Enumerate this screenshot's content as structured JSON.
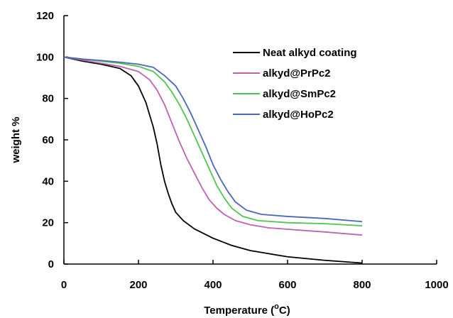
{
  "chart_data": {
    "type": "line",
    "xlabel": "Temperature (",
    "xlabel_unit": "C)",
    "xlabel_superscript": "o",
    "ylabel": "weight %",
    "xlim": [
      0,
      1000
    ],
    "ylim": [
      0,
      120
    ],
    "xticks": [
      "0",
      "200",
      "400",
      "600",
      "800",
      "1000"
    ],
    "yticks": [
      "0",
      "20",
      "40",
      "60",
      "80",
      "100",
      "120"
    ],
    "grid": false,
    "legend_position": "top-right",
    "series": [
      {
        "name": "Neat alkyd coating",
        "color": "#000000",
        "points": [
          [
            0,
            100
          ],
          [
            50,
            98
          ],
          [
            100,
            96.5
          ],
          [
            150,
            94.5
          ],
          [
            180,
            91
          ],
          [
            200,
            86
          ],
          [
            220,
            78
          ],
          [
            240,
            66
          ],
          [
            250,
            58
          ],
          [
            260,
            48
          ],
          [
            270,
            40
          ],
          [
            280,
            34
          ],
          [
            290,
            29
          ],
          [
            300,
            25
          ],
          [
            320,
            21
          ],
          [
            350,
            17
          ],
          [
            400,
            12.5
          ],
          [
            450,
            9
          ],
          [
            500,
            6.5
          ],
          [
            550,
            5
          ],
          [
            600,
            3.5
          ],
          [
            700,
            1.8
          ],
          [
            800,
            0.5
          ]
        ]
      },
      {
        "name": "alkyd@PrPc2",
        "color": "#c060b0",
        "points": [
          [
            0,
            100
          ],
          [
            50,
            98.5
          ],
          [
            100,
            97
          ],
          [
            150,
            95.5
          ],
          [
            200,
            93
          ],
          [
            230,
            89
          ],
          [
            250,
            84
          ],
          [
            270,
            77
          ],
          [
            290,
            68
          ],
          [
            310,
            59
          ],
          [
            330,
            51
          ],
          [
            350,
            44
          ],
          [
            370,
            37
          ],
          [
            390,
            31
          ],
          [
            410,
            27
          ],
          [
            430,
            24
          ],
          [
            460,
            21
          ],
          [
            500,
            19
          ],
          [
            550,
            17.5
          ],
          [
            600,
            16.8
          ],
          [
            700,
            15.5
          ],
          [
            800,
            14
          ]
        ]
      },
      {
        "name": "alkyd@SmPc2",
        "color": "#4ec64e",
        "points": [
          [
            0,
            100
          ],
          [
            50,
            99
          ],
          [
            100,
            98
          ],
          [
            150,
            97
          ],
          [
            200,
            95.5
          ],
          [
            240,
            93
          ],
          [
            270,
            88
          ],
          [
            290,
            83
          ],
          [
            310,
            77
          ],
          [
            330,
            70
          ],
          [
            350,
            62
          ],
          [
            370,
            54
          ],
          [
            390,
            46
          ],
          [
            410,
            38
          ],
          [
            430,
            32
          ],
          [
            450,
            27
          ],
          [
            480,
            23
          ],
          [
            520,
            21
          ],
          [
            600,
            20
          ],
          [
            700,
            19.5
          ],
          [
            800,
            18.5
          ]
        ]
      },
      {
        "name": "alkyd@HoPc2",
        "color": "#4a68b8",
        "points": [
          [
            0,
            100
          ],
          [
            50,
            99
          ],
          [
            100,
            98.3
          ],
          [
            150,
            97.5
          ],
          [
            200,
            96.5
          ],
          [
            240,
            95
          ],
          [
            270,
            91
          ],
          [
            300,
            86
          ],
          [
            320,
            80
          ],
          [
            340,
            73
          ],
          [
            360,
            65
          ],
          [
            380,
            57
          ],
          [
            400,
            48
          ],
          [
            420,
            41
          ],
          [
            440,
            35
          ],
          [
            460,
            30
          ],
          [
            490,
            26
          ],
          [
            530,
            24
          ],
          [
            600,
            23
          ],
          [
            700,
            22
          ],
          [
            800,
            20.5
          ]
        ]
      }
    ]
  }
}
